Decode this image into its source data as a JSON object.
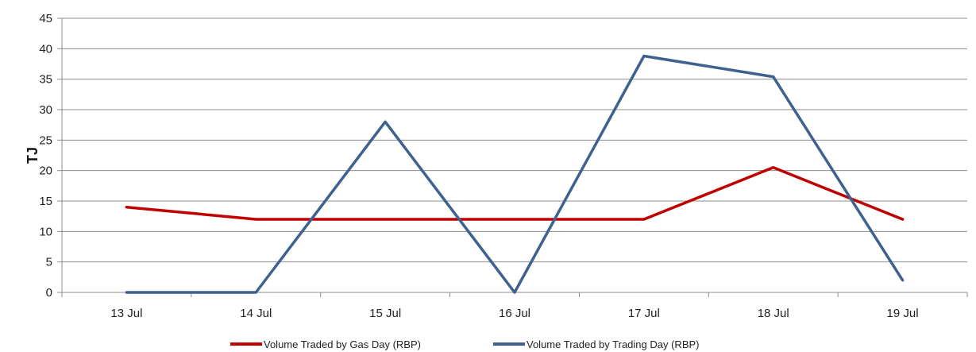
{
  "chart_data": {
    "type": "line",
    "title": "",
    "xlabel": "",
    "ylabel": "TJ",
    "categories": [
      "13 Jul",
      "14 Jul",
      "15 Jul",
      "16 Jul",
      "17 Jul",
      "18 Jul",
      "19 Jul"
    ],
    "ylim": [
      0,
      45
    ],
    "yticks": [
      0,
      5,
      10,
      15,
      20,
      25,
      30,
      35,
      40,
      45
    ],
    "grid": true,
    "legend_position": "bottom",
    "series": [
      {
        "name": "Volume Traded by Gas Day (RBP)",
        "color": "#c00000",
        "values": [
          14,
          12,
          12,
          12,
          12,
          20.5,
          12
        ]
      },
      {
        "name": "Volume Traded by Trading Day (RBP)",
        "color": "#3f6190",
        "values": [
          0,
          0,
          28,
          0,
          38.8,
          35.4,
          2
        ]
      }
    ]
  }
}
